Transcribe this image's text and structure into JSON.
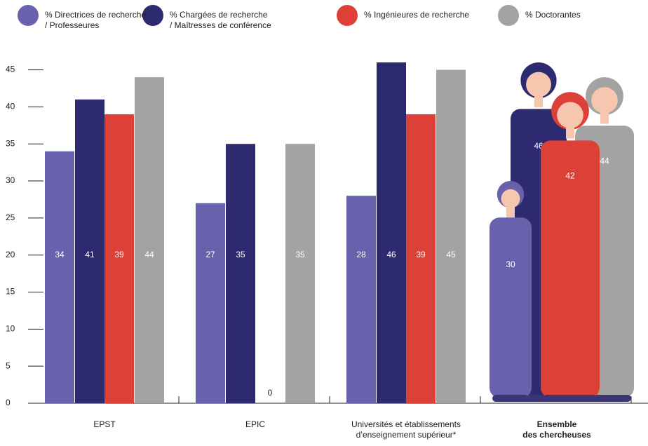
{
  "chart_data": {
    "type": "bar",
    "categories": [
      "EPST",
      "EPIC",
      "Universités et établissements\nd’enseignement supérieur*",
      "Ensemble\ndes chercheuses"
    ],
    "series": [
      {
        "name": "% Directrices de recherche\n/ Professeures",
        "color": "#6862ad",
        "values": [
          34,
          27,
          28,
          30
        ]
      },
      {
        "name": "% Chargées de recherche\n/ Maîtresses de conférence",
        "color": "#2e2a6f",
        "values": [
          41,
          35,
          46,
          46
        ]
      },
      {
        "name": "% Ingénieures de recherche",
        "color": "#dc4036",
        "values": [
          39,
          0,
          39,
          42
        ]
      },
      {
        "name": "% Doctorantes",
        "color": "#a3a3a3",
        "values": [
          44,
          35,
          45,
          44
        ]
      }
    ],
    "ylim": [
      0,
      46
    ],
    "yticks": [
      0,
      5,
      10,
      15,
      20,
      25,
      30,
      35,
      40,
      45
    ]
  }
}
